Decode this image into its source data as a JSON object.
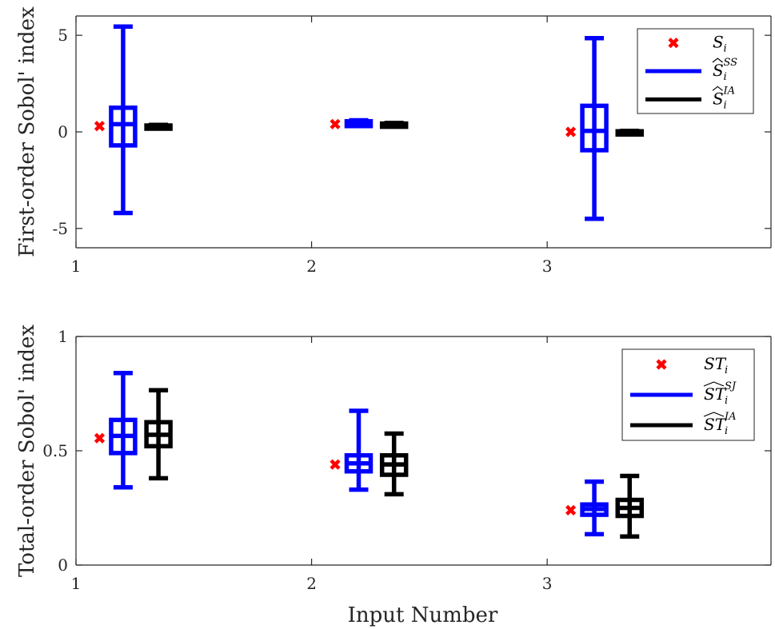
{
  "chart_data": [
    {
      "type": "box",
      "ylabel": "First-order Sobol' index",
      "xlabel": "",
      "xlim": [
        1,
        3.95
      ],
      "ylim": [
        -6,
        6
      ],
      "xticks": [
        "1",
        "2",
        "3"
      ],
      "yticks": [
        "-5",
        "0",
        "5"
      ],
      "ytick_values": [
        -5,
        0,
        5
      ],
      "legend_position": "top-right",
      "legend": [
        {
          "base": "S",
          "sub": "i",
          "sup": "",
          "hat": false,
          "kind": "marker"
        },
        {
          "base": "S",
          "sub": "i",
          "sup": "SS",
          "hat": true,
          "kind": "line"
        },
        {
          "base": "S",
          "sub": "i",
          "sup": "IA",
          "hat": true,
          "kind": "line"
        }
      ],
      "reference": {
        "name": "S_i",
        "color": "#ff0000",
        "x": [
          1.1,
          2.1,
          3.1
        ],
        "y": [
          0.3,
          0.4,
          0.0
        ]
      },
      "series": [
        {
          "name": "S_i^SS",
          "color": "#0000ff",
          "x": [
            1.2,
            2.2,
            3.2
          ],
          "whisker_low": [
            -4.2,
            0.3,
            -4.5
          ],
          "q1": [
            -0.7,
            0.3,
            -0.95
          ],
          "median": [
            0.4,
            0.45,
            0.05
          ],
          "q3": [
            1.25,
            0.55,
            1.35
          ],
          "whisker_high": [
            5.45,
            0.6,
            4.85
          ]
        },
        {
          "name": "S_i^IA",
          "color": "#000000",
          "x": [
            1.35,
            2.35,
            3.35
          ],
          "whisker_low": [
            0.25,
            0.35,
            -0.05
          ],
          "q1": [
            0.27,
            0.37,
            -0.03
          ],
          "median": [
            0.3,
            0.4,
            0.0
          ],
          "q3": [
            0.33,
            0.43,
            0.03
          ],
          "whisker_high": [
            0.36,
            0.46,
            0.05
          ]
        }
      ]
    },
    {
      "type": "box",
      "ylabel": "Total-order Sobol' index",
      "xlabel": "Input Number",
      "xlim": [
        1,
        3.95
      ],
      "ylim": [
        0,
        1
      ],
      "xticks": [
        "1",
        "2",
        "3"
      ],
      "yticks": [
        "0",
        "0.5",
        "1"
      ],
      "ytick_values": [
        0,
        0.5,
        1
      ],
      "legend_position": "top-right",
      "legend": [
        {
          "base": "ST",
          "sub": "i",
          "sup": "",
          "hat": false,
          "kind": "marker"
        },
        {
          "base": "ST",
          "sub": "i",
          "sup": "SJ",
          "hat": true,
          "kind": "line"
        },
        {
          "base": "ST",
          "sub": "i",
          "sup": "IA",
          "hat": true,
          "kind": "line"
        }
      ],
      "reference": {
        "name": "ST_i",
        "color": "#ff0000",
        "x": [
          1.1,
          2.1,
          3.1
        ],
        "y": [
          0.555,
          0.44,
          0.24
        ]
      },
      "series": [
        {
          "name": "ST_i^SJ",
          "color": "#0000ff",
          "x": [
            1.2,
            2.2,
            3.2
          ],
          "whisker_low": [
            0.34,
            0.33,
            0.135
          ],
          "q1": [
            0.49,
            0.41,
            0.22
          ],
          "median": [
            0.565,
            0.445,
            0.245
          ],
          "q3": [
            0.635,
            0.48,
            0.265
          ],
          "whisker_high": [
            0.84,
            0.675,
            0.365
          ]
        },
        {
          "name": "ST_i^IA",
          "color": "#000000",
          "x": [
            1.35,
            2.35,
            3.35
          ],
          "whisker_low": [
            0.38,
            0.31,
            0.125
          ],
          "q1": [
            0.52,
            0.395,
            0.215
          ],
          "median": [
            0.57,
            0.44,
            0.25
          ],
          "q3": [
            0.625,
            0.48,
            0.285
          ],
          "whisker_high": [
            0.765,
            0.575,
            0.39
          ]
        }
      ]
    }
  ]
}
